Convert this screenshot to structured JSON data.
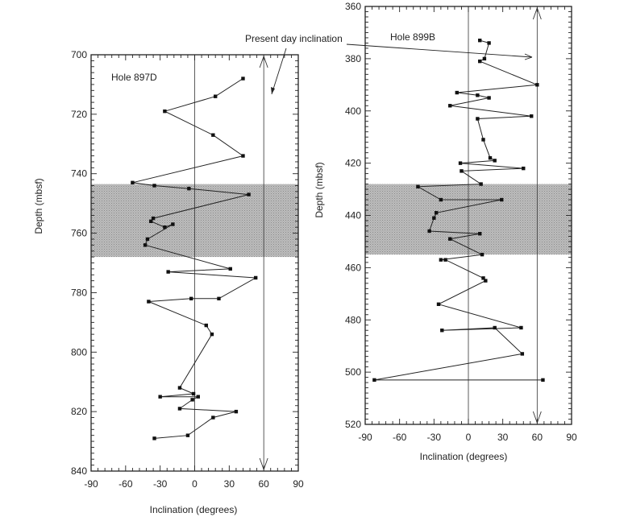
{
  "annotation": "Present day inclination",
  "chart_data": [
    {
      "type": "line",
      "hole": "Hole 897D",
      "xlabel": "Inclination (degrees)",
      "ylabel": "Depth (mbsf)",
      "xlim": [
        -90,
        90
      ],
      "ylim": [
        700,
        840
      ],
      "y_inverted": true,
      "xticks": [
        -90,
        -60,
        -30,
        0,
        30,
        60,
        90
      ],
      "yticks": [
        700,
        720,
        740,
        760,
        780,
        800,
        820,
        840
      ],
      "present_day_inclination": 60,
      "shaded_interval": [
        743.5,
        768
      ],
      "points": [
        [
          42,
          708
        ],
        [
          18,
          714
        ],
        [
          -26,
          719
        ],
        [
          16,
          727
        ],
        [
          42,
          734
        ],
        [
          -54,
          743
        ],
        [
          -35,
          744
        ],
        [
          -5,
          745
        ],
        [
          47,
          747
        ],
        [
          -36,
          755
        ],
        [
          -38,
          756
        ],
        [
          -26,
          758
        ],
        [
          -19,
          757
        ],
        [
          -41,
          762
        ],
        [
          -43,
          764
        ],
        [
          31,
          772
        ],
        [
          -23,
          773
        ],
        [
          53,
          775
        ],
        [
          21,
          782
        ],
        [
          -3,
          782
        ],
        [
          -40,
          783
        ],
        [
          10,
          791
        ],
        [
          15,
          794
        ],
        [
          -13,
          812
        ],
        [
          -1,
          814
        ],
        [
          -30,
          815
        ],
        [
          3,
          815
        ],
        [
          -2,
          816
        ],
        [
          -13,
          819
        ],
        [
          36,
          820
        ],
        [
          16,
          822
        ],
        [
          -6,
          828
        ],
        [
          -35,
          829
        ]
      ]
    },
    {
      "type": "line",
      "hole": "Hole 899B",
      "xlabel": "Inclination (degrees)",
      "ylabel": "Depth (mbsf)",
      "xlim": [
        -90,
        90
      ],
      "ylim": [
        360,
        520
      ],
      "y_inverted": true,
      "xticks": [
        -90,
        -60,
        -30,
        0,
        30,
        60,
        90
      ],
      "yticks": [
        360,
        380,
        400,
        420,
        440,
        460,
        480,
        500,
        520
      ],
      "present_day_inclination": 60,
      "shaded_interval": [
        428,
        455
      ],
      "points": [
        [
          10,
          373
        ],
        [
          18,
          374
        ],
        [
          14,
          380
        ],
        [
          10,
          381
        ],
        [
          60,
          390
        ],
        [
          -10,
          393
        ],
        [
          8,
          394
        ],
        [
          18,
          395
        ],
        [
          -16,
          398
        ],
        [
          55,
          402
        ],
        [
          8,
          403
        ],
        [
          13,
          411
        ],
        [
          19,
          418
        ],
        [
          23,
          419
        ],
        [
          -7,
          420
        ],
        [
          48,
          422
        ],
        [
          -6,
          423
        ],
        [
          11,
          428
        ],
        [
          -44,
          429
        ],
        [
          -24,
          434
        ],
        [
          29,
          434
        ],
        [
          -28,
          439
        ],
        [
          -30,
          441
        ],
        [
          -34,
          446
        ],
        [
          10,
          447
        ],
        [
          -16,
          449
        ],
        [
          12,
          455
        ],
        [
          -24,
          457
        ],
        [
          -20,
          457
        ],
        [
          13,
          464
        ],
        [
          15,
          465
        ],
        [
          -26,
          474
        ],
        [
          46,
          483
        ],
        [
          -23,
          484
        ],
        [
          23,
          483
        ],
        [
          47,
          493
        ],
        [
          -82,
          503
        ],
        [
          65,
          503
        ]
      ]
    }
  ]
}
